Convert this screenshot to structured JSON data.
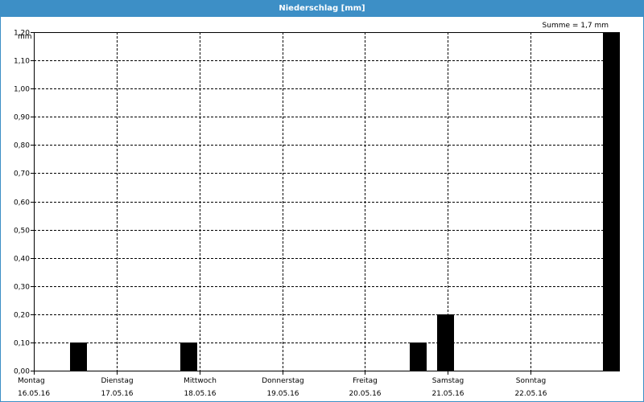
{
  "window": {
    "title": "Niederschlag [mm]"
  },
  "chart_data": {
    "type": "bar",
    "y_unit_label": "mm",
    "sum_label": "Summe = 1,7 mm",
    "ylim": [
      0,
      1.2
    ],
    "y_ticks": [
      {
        "value": 0.0,
        "label": "0,00"
      },
      {
        "value": 0.1,
        "label": "0,10"
      },
      {
        "value": 0.2,
        "label": "0,20"
      },
      {
        "value": 0.3,
        "label": "0,30"
      },
      {
        "value": 0.4,
        "label": "0,40"
      },
      {
        "value": 0.5,
        "label": "0,50"
      },
      {
        "value": 0.6,
        "label": "0,60"
      },
      {
        "value": 0.7,
        "label": "0,70"
      },
      {
        "value": 0.8,
        "label": "0,80"
      },
      {
        "value": 0.9,
        "label": "0,90"
      },
      {
        "value": 1.0,
        "label": "1,00"
      },
      {
        "value": 1.1,
        "label": "1,10"
      },
      {
        "value": 1.2,
        "label": "1,20"
      }
    ],
    "x_range_days": [
      0,
      7
    ],
    "x_ticks": [
      {
        "day": 0,
        "weekday": "Montag",
        "date": "16.05.16"
      },
      {
        "day": 1,
        "weekday": "Dienstag",
        "date": "17.05.16"
      },
      {
        "day": 2,
        "weekday": "Mittwoch",
        "date": "18.05.16"
      },
      {
        "day": 3,
        "weekday": "Donnerstag",
        "date": "19.05.16"
      },
      {
        "day": 4,
        "weekday": "Freitag",
        "date": "20.05.16"
      },
      {
        "day": 5,
        "weekday": "Samstag",
        "date": "21.05.16"
      },
      {
        "day": 6,
        "weekday": "Sonntag",
        "date": "22.05.16"
      }
    ],
    "bar_width_days": 0.2,
    "bars": [
      {
        "day": 0.54,
        "value": 0.1
      },
      {
        "day": 1.87,
        "value": 0.1
      },
      {
        "day": 4.64,
        "value": 0.1
      },
      {
        "day": 4.97,
        "value": 0.2
      },
      {
        "day": 6.97,
        "value": 1.2
      }
    ],
    "grid": true,
    "colors": {
      "bar": "#000000",
      "title_bar": "#3d8fc6",
      "grid": "#000000"
    }
  }
}
